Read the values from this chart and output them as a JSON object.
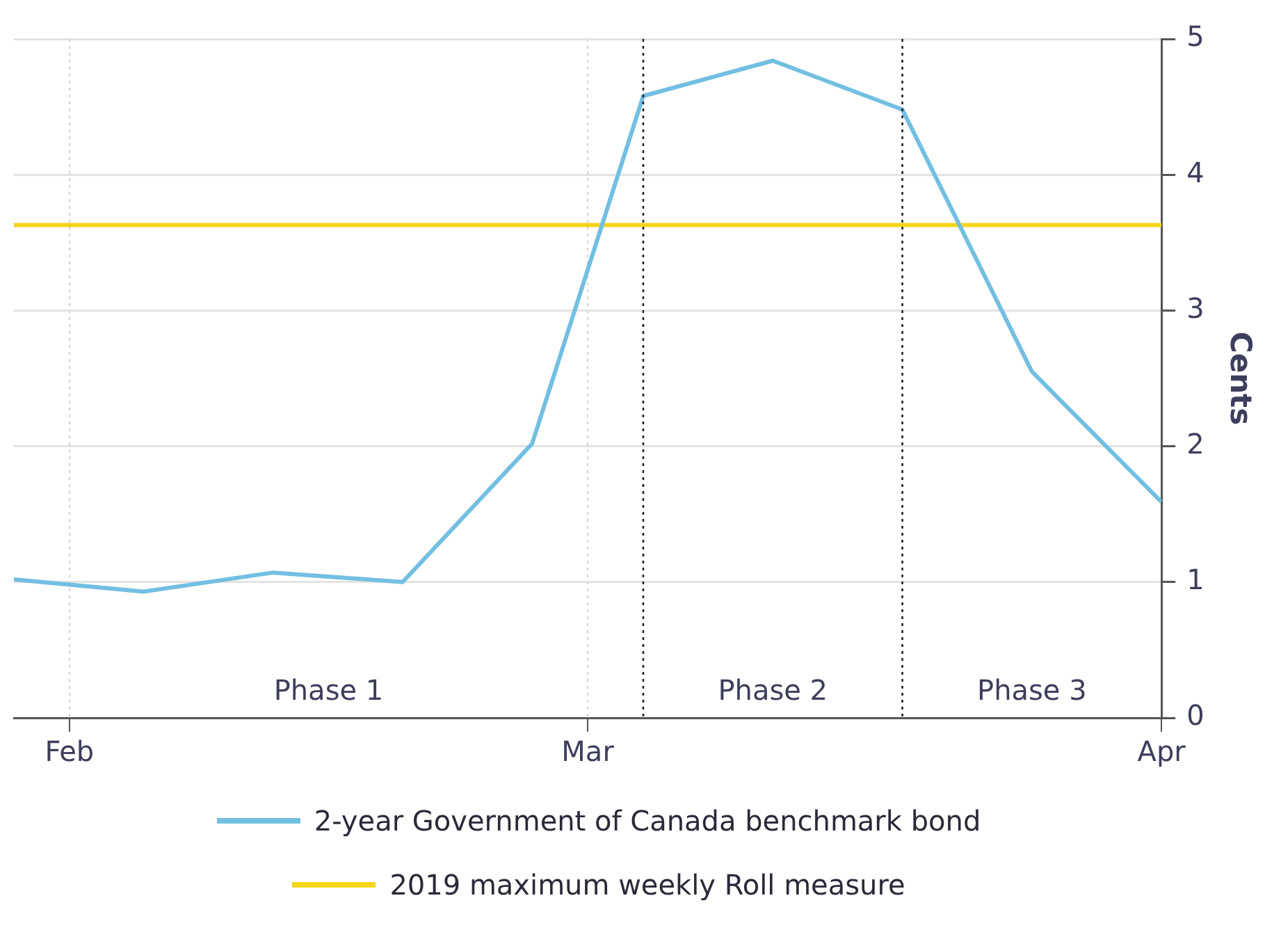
{
  "chart_data": {
    "type": "line",
    "ylabel": "Cents",
    "x": [
      "--01-29",
      "--02-05",
      "--02-12",
      "--02-19",
      "--02-26",
      "--03-04",
      "--03-11",
      "--03-18",
      "--03-25",
      "--04-01"
    ],
    "series": [
      {
        "name": "2-year Government of Canada benchmark bond",
        "color": "#73bfe2",
        "values": [
          1.02,
          0.93,
          1.07,
          1.0,
          2.02,
          4.58,
          4.84,
          4.48,
          2.55,
          1.59
        ]
      },
      {
        "name": "2019 maximum weekly Roll measure",
        "color": "#f5d51a",
        "values": [
          3.63,
          3.63,
          3.63,
          3.63,
          3.63,
          3.63,
          3.63,
          3.63,
          3.63,
          3.63
        ]
      }
    ],
    "xlim": [
      "--01-29",
      "--04-01"
    ],
    "xticks": [
      {
        "value": "--02-01",
        "label": "Feb"
      },
      {
        "value": "--03-01",
        "label": "Mar"
      },
      {
        "value": "--04-01",
        "label": "Apr"
      }
    ],
    "ylim": [
      0,
      5
    ],
    "yticks": [
      0,
      1,
      2,
      3,
      4,
      5
    ],
    "ref_lines": [
      {
        "axis": "x",
        "value": "--03-04",
        "color": "#222222",
        "line_style": "dotted"
      },
      {
        "axis": "x",
        "value": "--03-18",
        "color": "#222222",
        "line_style": "dotted"
      }
    ],
    "annotations": [
      "Phase 1",
      "Phase 2",
      "Phase 3"
    ],
    "grid": true,
    "legend": "bottom",
    "marker": "none",
    "line_style": "solid"
  }
}
